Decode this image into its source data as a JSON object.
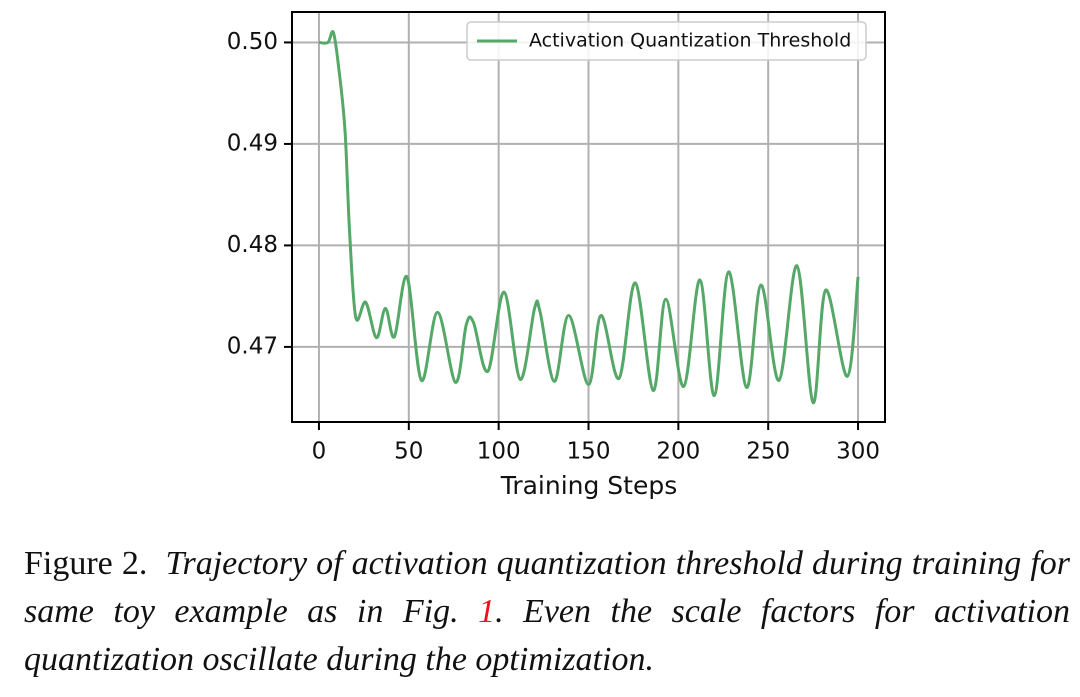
{
  "chart_data": {
    "type": "line",
    "xlabel": "Training Steps",
    "x": [
      0,
      5,
      8,
      11,
      14.5,
      17,
      20.5,
      26,
      32,
      37,
      42,
      49,
      57,
      66,
      76,
      82,
      86,
      94,
      103,
      112,
      120,
      123,
      131,
      139,
      150,
      157,
      167,
      176,
      186,
      193,
      203,
      212,
      220,
      228,
      238,
      246,
      256,
      266,
      275,
      282,
      294,
      300
    ],
    "series": [
      {
        "name": "Activation Quantization Threshold",
        "color": "#55a868",
        "values": [
          0.5,
          0.5,
          0.501,
          0.4975,
          0.4913,
          0.4815,
          0.4729,
          0.4744,
          0.4709,
          0.4738,
          0.471,
          0.4769,
          0.4667,
          0.4734,
          0.4665,
          0.4722,
          0.4724,
          0.4676,
          0.4754,
          0.4668,
          0.4738,
          0.4735,
          0.4666,
          0.4731,
          0.4663,
          0.4731,
          0.4669,
          0.4763,
          0.4657,
          0.4747,
          0.4661,
          0.4766,
          0.4652,
          0.4774,
          0.466,
          0.4761,
          0.4667,
          0.478,
          0.4645,
          0.4756,
          0.4671,
          0.4769
        ]
      }
    ],
    "xlim": [
      -15,
      315
    ],
    "ylim": [
      0.4626,
      0.503
    ],
    "xticks": [
      0,
      50,
      100,
      150,
      200,
      250,
      300
    ],
    "yticks": [
      {
        "value": 0.5,
        "label": "0.50"
      },
      0.49,
      0.48,
      0.47
    ],
    "grid": true,
    "legend": "upper right"
  },
  "caption": {
    "label": "Figure 2.",
    "text_before": "Trajectory of activation quantization threshold during training for same toy example as in Fig. ",
    "ref": "1",
    "text_after": ". Even the scale factors for activation quantization oscillate during the optimization."
  }
}
